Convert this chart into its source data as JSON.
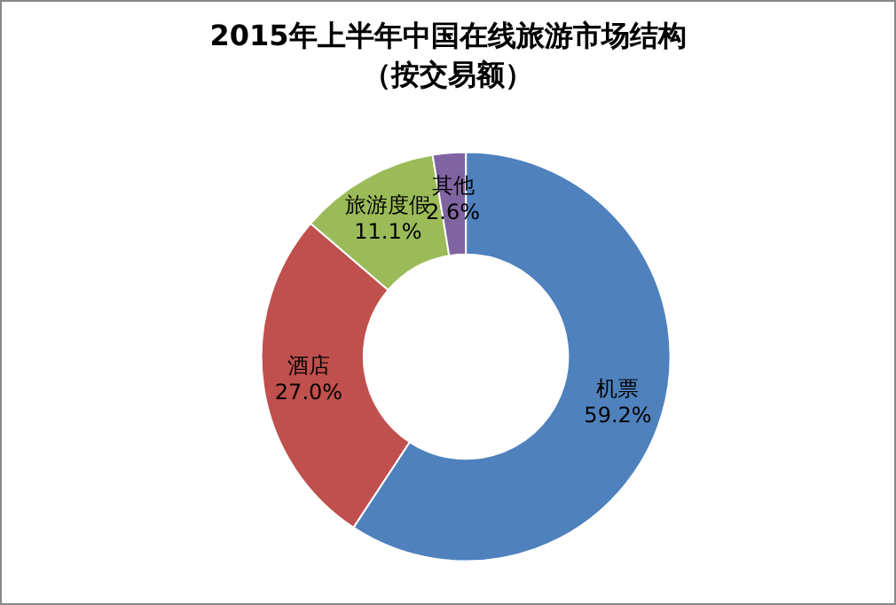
{
  "chart_data": {
    "type": "donut",
    "title": "2015年上半年中国在线旅游市场结构",
    "subtitle": "（按交易额）",
    "categories": [
      "机票",
      "酒店",
      "旅游度假",
      "其他"
    ],
    "values": [
      59.2,
      27.0,
      11.1,
      2.6
    ],
    "value_labels": [
      "59.2%",
      "27.0%",
      "11.1%",
      "2.6%"
    ],
    "colors": [
      "#4f81bd",
      "#c0504d",
      "#9bbb59",
      "#8064a2"
    ],
    "legend": false
  }
}
